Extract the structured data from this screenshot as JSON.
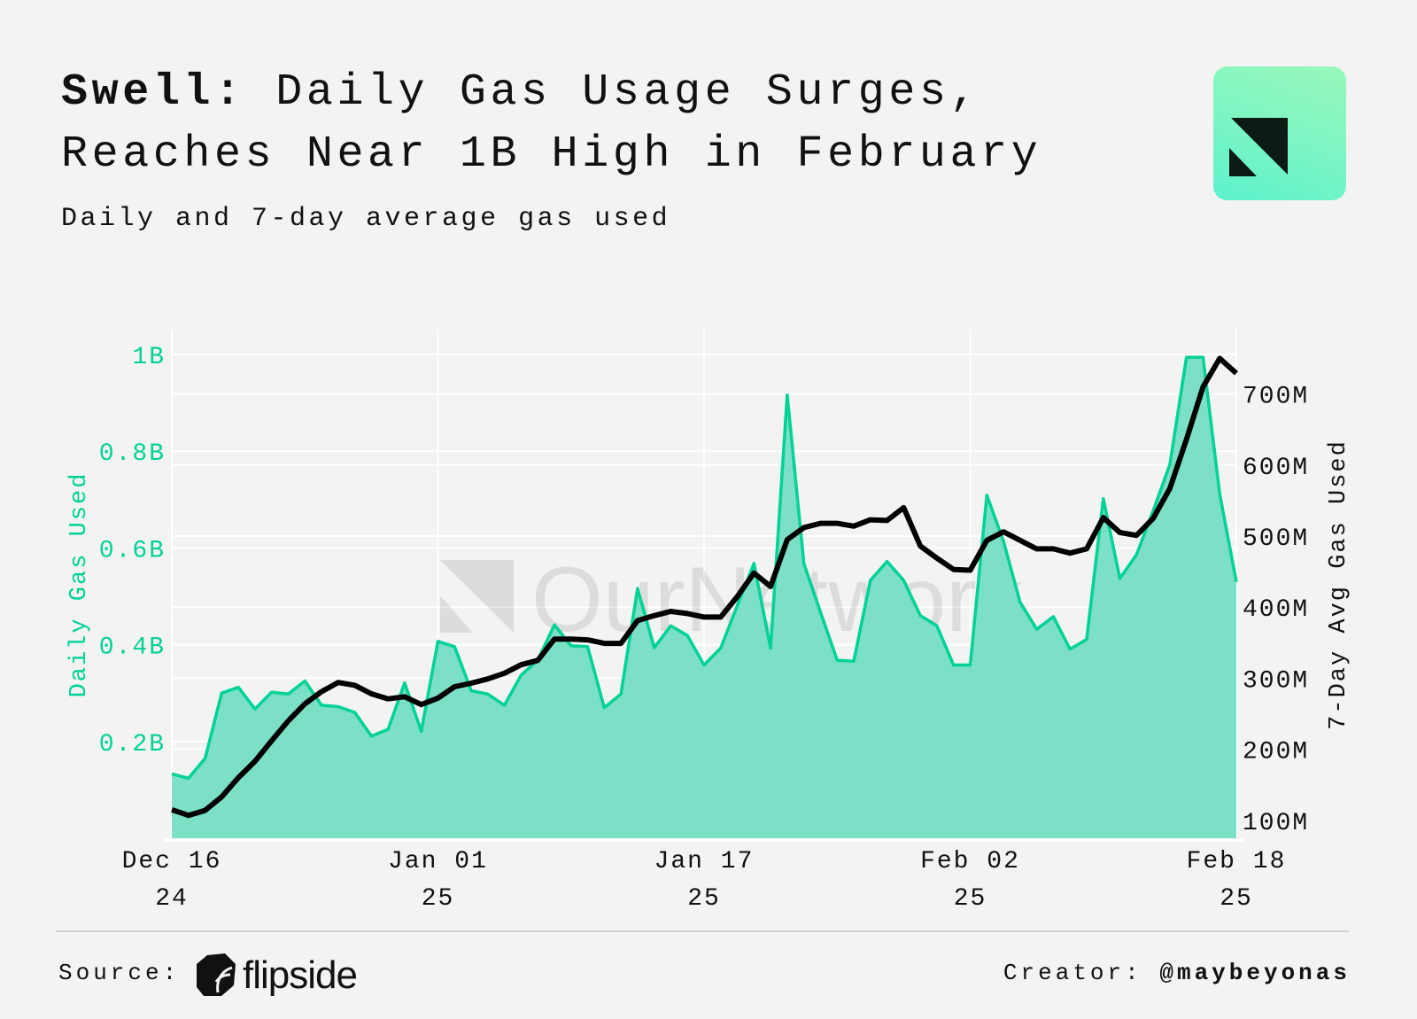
{
  "header": {
    "title_bold": "Swell:",
    "title_rest_line1": " Daily Gas Usage Surges,",
    "title_line2": "Reaches Near 1B High in February",
    "subtitle": "Daily and 7-day average gas used",
    "logo_icon": "ournetwork-logo-icon"
  },
  "watermark": {
    "text": "OurNetwork"
  },
  "footer": {
    "source_label": "Source:",
    "source_name": "flipside",
    "creator_label": "Creator:",
    "creator_handle": "@maybeyonas"
  },
  "colors": {
    "daily": "#00d296",
    "daily_fill": "#7ce0c6",
    "avg": "#000000",
    "background": "#f3f3f3",
    "grid": "#ffffff"
  },
  "chart_data": {
    "type": "area",
    "title": "Swell: Daily Gas Usage Surges, Reaches Near 1B High in February",
    "x_start": "2024-12-16",
    "x_end": "2025-02-18",
    "x_ticks": [
      {
        "day": 0,
        "line1": "Dec 16",
        "line2": "24"
      },
      {
        "day": 16,
        "line1": "Jan 01",
        "line2": "25"
      },
      {
        "day": 32,
        "line1": "Jan 17",
        "line2": "25"
      },
      {
        "day": 48,
        "line1": "Feb 02",
        "line2": "25"
      },
      {
        "day": 64,
        "line1": "Feb 18",
        "line2": "25"
      }
    ],
    "y_left": {
      "label": "Daily Gas Used",
      "ticks": [
        {
          "v": 0.2,
          "t": "0.2B"
        },
        {
          "v": 0.4,
          "t": "0.4B"
        },
        {
          "v": 0.6,
          "t": "0.6B"
        },
        {
          "v": 0.8,
          "t": "0.8B"
        },
        {
          "v": 1.0,
          "t": "1B"
        }
      ],
      "unit": "B",
      "range": [
        0,
        1.03
      ]
    },
    "y_right": {
      "label": "7-Day Avg Gas Used",
      "ticks": [
        {
          "v": 100,
          "t": "100M"
        },
        {
          "v": 200,
          "t": "200M"
        },
        {
          "v": 300,
          "t": "300M"
        },
        {
          "v": 400,
          "t": "400M"
        },
        {
          "v": 500,
          "t": "500M"
        },
        {
          "v": 600,
          "t": "600M"
        },
        {
          "v": 700,
          "t": "700M"
        }
      ],
      "unit": "M",
      "range": [
        74,
        756
      ]
    },
    "series": [
      {
        "name": "Daily Gas Used",
        "type": "area",
        "axis": "left",
        "unit": "B",
        "values": [
          0.133,
          0.124,
          0.165,
          0.3,
          0.312,
          0.267,
          0.302,
          0.298,
          0.325,
          0.275,
          0.272,
          0.26,
          0.211,
          0.225,
          0.321,
          0.221,
          0.407,
          0.396,
          0.305,
          0.298,
          0.275,
          0.337,
          0.368,
          0.441,
          0.398,
          0.396,
          0.27,
          0.298,
          0.516,
          0.394,
          0.439,
          0.419,
          0.358,
          0.393,
          0.481,
          0.568,
          0.393,
          0.916,
          0.568,
          0.467,
          0.368,
          0.366,
          0.533,
          0.572,
          0.533,
          0.46,
          0.439,
          0.358,
          0.358,
          0.709,
          0.614,
          0.488,
          0.432,
          0.458,
          0.391,
          0.411,
          0.702,
          0.537,
          0.586,
          0.677,
          0.772,
          0.994,
          0.994,
          0.712,
          0.53
        ]
      },
      {
        "name": "7-Day Avg Gas Used",
        "type": "line",
        "axis": "right",
        "unit": "M",
        "values": [
          115,
          107,
          114,
          133,
          160,
          183,
          212,
          240,
          264,
          281,
          294,
          290,
          278,
          271,
          274,
          263,
          272,
          288,
          293,
          299,
          307,
          319,
          325,
          355,
          355,
          354,
          349,
          349,
          381,
          388,
          394,
          391,
          386,
          386,
          415,
          448,
          429,
          495,
          512,
          518,
          518,
          514,
          523,
          522,
          540,
          486,
          469,
          453,
          452,
          494,
          506,
          494,
          482,
          482,
          476,
          482,
          526,
          505,
          501,
          525,
          567,
          636,
          710,
          750,
          729
        ]
      }
    ],
    "grid": true,
    "legend": "none"
  }
}
